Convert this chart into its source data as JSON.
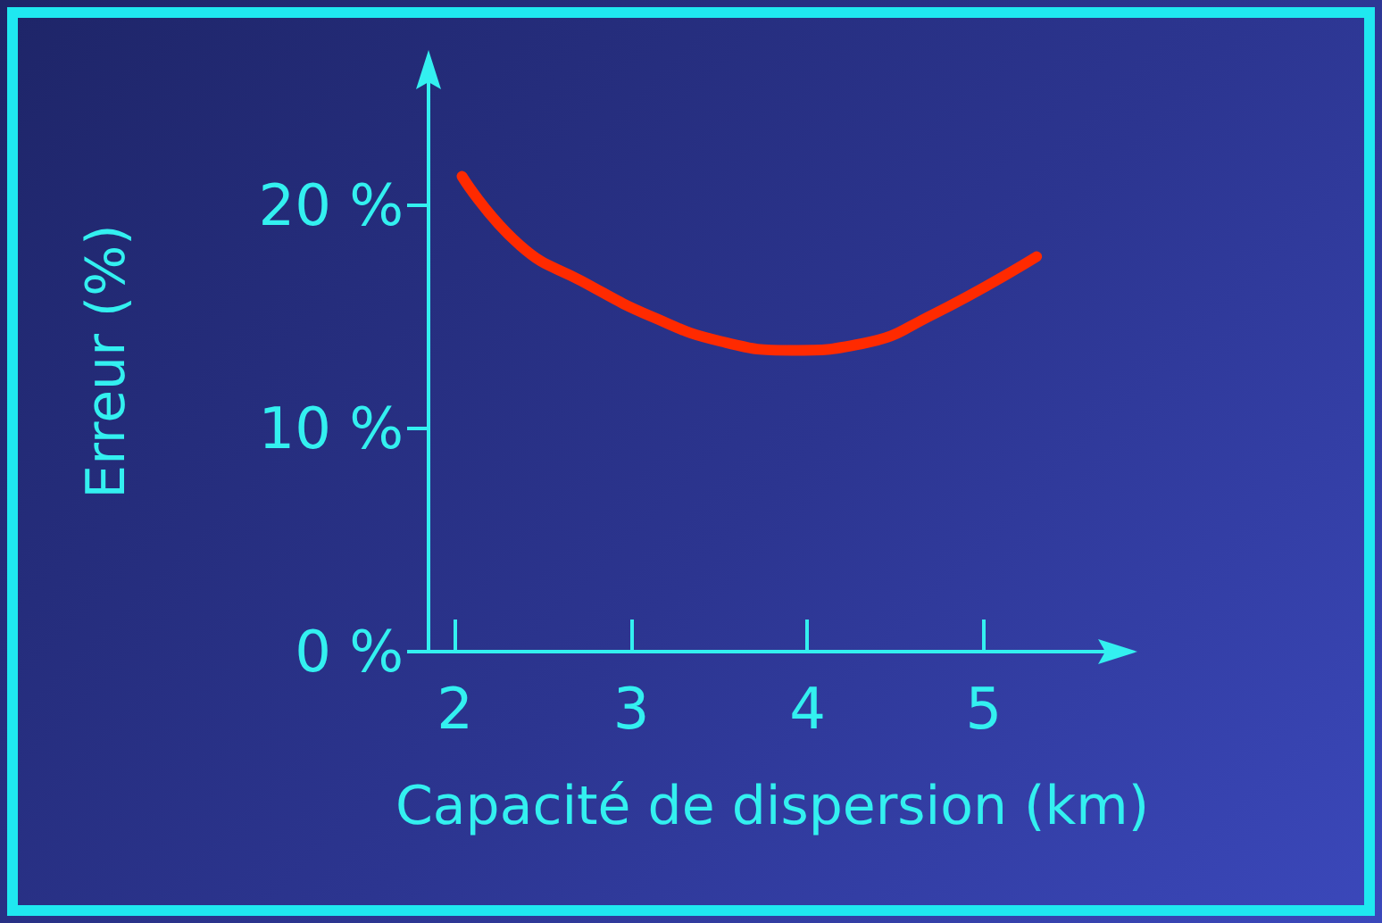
{
  "chart_data": {
    "type": "line",
    "xlabel": "Capacité de dispersion (km)",
    "ylabel": "Erreur (%)",
    "x": [
      2.04,
      2.37,
      2.72,
      3.12,
      3.51,
      3.91,
      4.31,
      4.71,
      5.3
    ],
    "series": [
      {
        "color": "#ff2a00",
        "values": [
          21.3,
          18.2,
          16.6,
          15.0,
          13.9,
          13.5,
          13.8,
          15.1,
          17.7
        ]
      }
    ],
    "xlim": [
      1.85,
      5.75
    ],
    "xticks": [
      2,
      3,
      4,
      5
    ],
    "ylim": [
      0,
      26
    ],
    "yticks": [
      {
        "value": 0,
        "label": "0 %"
      },
      {
        "value": 10,
        "label": "10 %"
      },
      {
        "value": 20,
        "label": "20 %"
      }
    ],
    "grid": false,
    "marker": "none",
    "line_style": "solid"
  }
}
